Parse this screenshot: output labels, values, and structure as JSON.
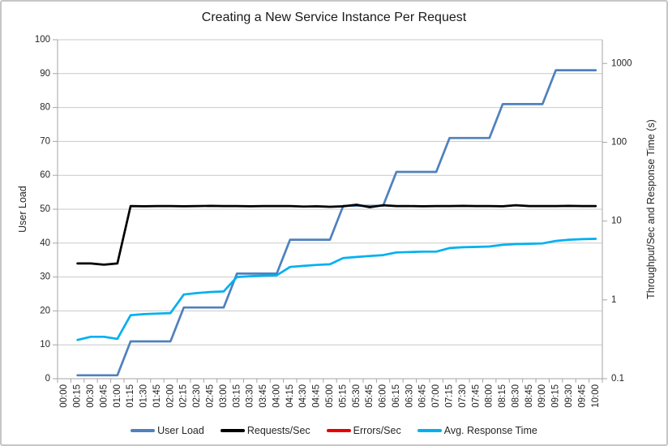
{
  "chart_data": {
    "type": "line",
    "title": "Creating a New Service Instance Per Request",
    "legend_position": "bottom",
    "grid": "horizontal",
    "x_categories": [
      "00:00",
      "00:15",
      "00:30",
      "00:45",
      "01:00",
      "01:15",
      "01:30",
      "01:45",
      "02:00",
      "02:15",
      "02:30",
      "02:45",
      "03:00",
      "03:15",
      "03:30",
      "03:45",
      "04:00",
      "04:15",
      "04:30",
      "04:45",
      "05:00",
      "05:15",
      "05:30",
      "05:45",
      "06:00",
      "06:15",
      "06:30",
      "06:45",
      "07:00",
      "07:15",
      "07:30",
      "07:45",
      "08:00",
      "08:15",
      "08:30",
      "08:45",
      "09:00",
      "09:15",
      "09:30",
      "09:45",
      "10:00"
    ],
    "left_axis": {
      "label": "User Load",
      "min": 0,
      "max": 100,
      "tick_interval": 10,
      "ticks": [
        0,
        10,
        20,
        30,
        40,
        50,
        60,
        70,
        80,
        90,
        100
      ]
    },
    "right_axis": {
      "label": "Throughput/Sec and Response Time (s)",
      "scale": "log",
      "min": 0.1,
      "max": 2000,
      "ticks": [
        0.1,
        1,
        10,
        100,
        1000
      ]
    },
    "series": [
      {
        "name": "User Load",
        "color": "#4f81bd",
        "axis": "left",
        "values": [
          null,
          1,
          1,
          1,
          1,
          11,
          11,
          11,
          11,
          21,
          21,
          21,
          21,
          31,
          31,
          31,
          31,
          41,
          41,
          41,
          41,
          51,
          51,
          51,
          51,
          61,
          61,
          61,
          61,
          71,
          71,
          71,
          71,
          81,
          81,
          81,
          81,
          91,
          91,
          91,
          91
        ]
      },
      {
        "name": "Requests/Sec",
        "color": "#000000",
        "axis": "right",
        "values": [
          null,
          2.9,
          2.9,
          2.8,
          2.9,
          15.5,
          15.4,
          15.5,
          15.5,
          15.4,
          15.5,
          15.6,
          15.5,
          15.5,
          15.4,
          15.5,
          15.5,
          15.5,
          15.3,
          15.4,
          15.2,
          15.4,
          16.1,
          15.0,
          15.9,
          15.5,
          15.5,
          15.4,
          15.5,
          15.5,
          15.6,
          15.5,
          15.5,
          15.4,
          15.9,
          15.5,
          15.5,
          15.5,
          15.6,
          15.5,
          15.5
        ]
      },
      {
        "name": "Errors/Sec",
        "color": "#e60000",
        "axis": "right",
        "values": [
          null,
          0,
          0,
          0,
          0,
          0,
          0,
          0,
          0,
          0,
          0,
          0,
          0,
          0,
          0,
          0,
          0,
          0,
          0,
          0,
          0,
          0,
          0,
          0,
          0,
          0,
          0,
          0,
          0,
          0,
          0,
          0,
          0,
          0,
          0,
          0,
          0,
          0,
          0,
          0,
          0
        ]
      },
      {
        "name": "Avg. Response Time",
        "color": "#00b0f0",
        "axis": "right",
        "values": [
          null,
          0.31,
          0.34,
          0.34,
          0.32,
          0.64,
          0.66,
          0.67,
          0.68,
          1.17,
          1.22,
          1.26,
          1.28,
          1.95,
          2.0,
          2.03,
          2.05,
          2.62,
          2.7,
          2.78,
          2.83,
          3.4,
          3.5,
          3.6,
          3.7,
          4.0,
          4.05,
          4.1,
          4.1,
          4.55,
          4.65,
          4.7,
          4.75,
          5.0,
          5.1,
          5.15,
          5.2,
          5.6,
          5.8,
          5.9,
          5.95
        ]
      }
    ]
  }
}
